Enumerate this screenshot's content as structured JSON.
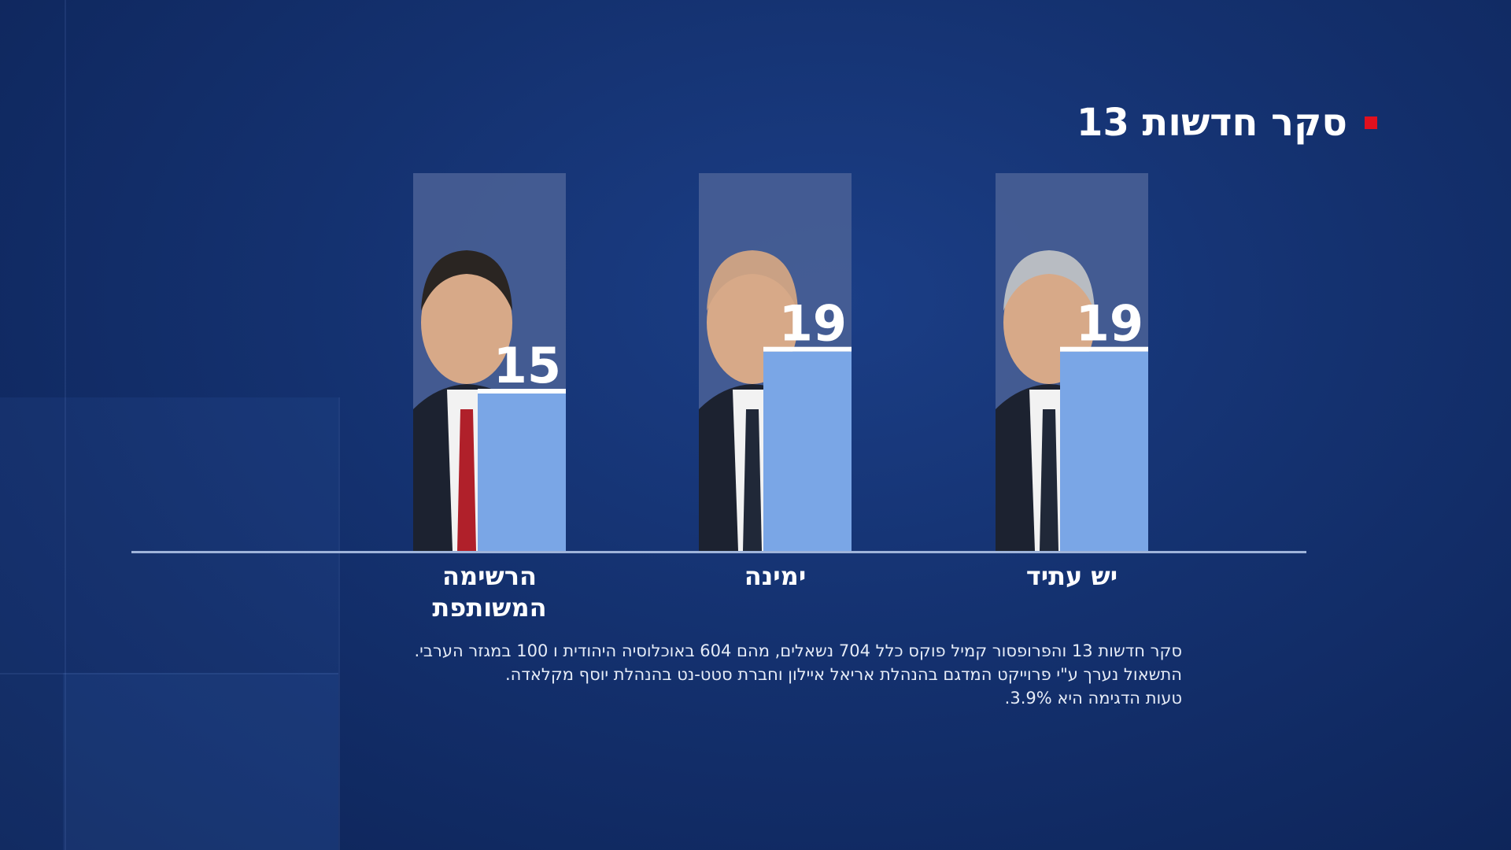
{
  "title": "סקר חדשות 13",
  "colors": {
    "bar": "#7aa6e6",
    "bar_top": "#ffffff",
    "panel": "#4b6296",
    "accent": "#e0101e",
    "axis": "#9fb4da"
  },
  "chart_data": {
    "type": "bar",
    "categories": [
      "יש עתיד",
      "ימינה",
      "הרשימה\nהמשותפת"
    ],
    "values": [
      19,
      19,
      15
    ],
    "title": "סקר חדשות 13",
    "xlabel": "",
    "ylabel": "",
    "ylim": [
      0,
      36
    ],
    "grid": false,
    "legend": "none"
  },
  "footnote": [
    "סקר חדשות 13 והפרופסור קמיל פוקס כלל 704 נשאלים, מהם 604 באוכלוסיה היהודית ו 100 במגזר הערבי.",
    "התשאול נערך ע\"י פרוייקט המדגם בהנהלת  אריאל איילון וחברת סטט-נט בהנהלת יוסף מקלאדה.",
    "טעות הדגימה היא 3.9%."
  ]
}
